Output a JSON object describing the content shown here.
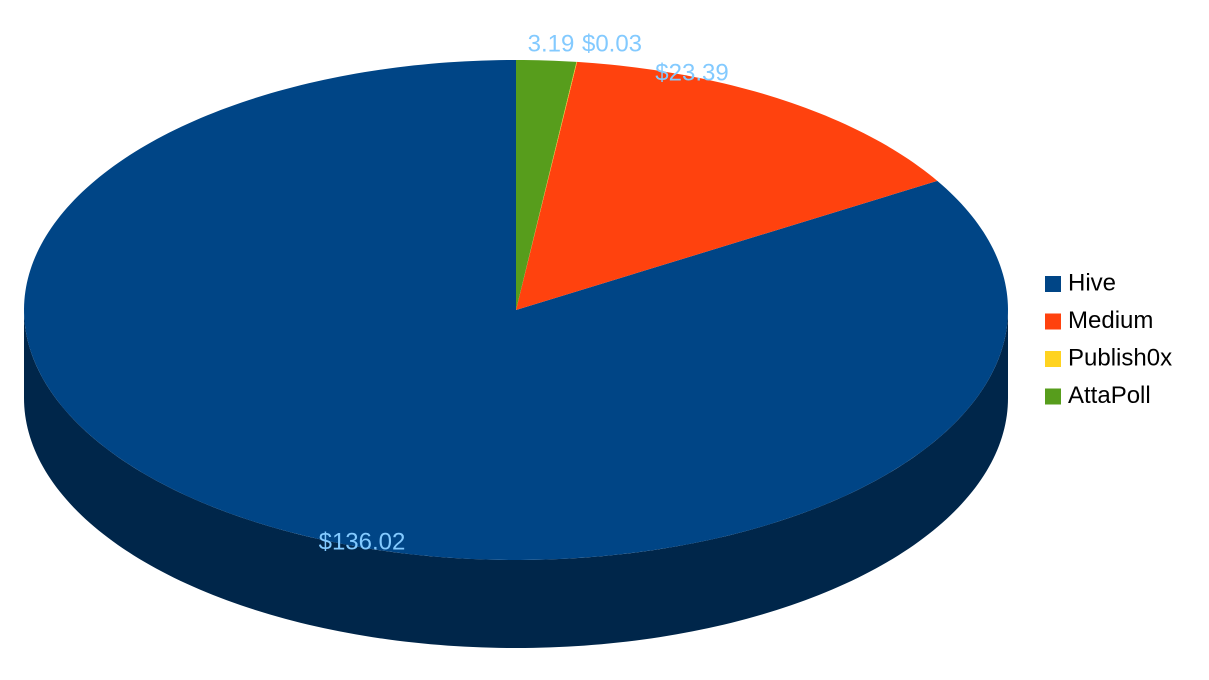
{
  "chart_data": {
    "type": "pie",
    "categories": [
      "Hive",
      "Medium",
      "Publish0x",
      "AttaPoll"
    ],
    "values": [
      136.02,
      23.39,
      0.03,
      3.19
    ],
    "value_labels": [
      "$136.02",
      "$23.39",
      "$0.03",
      "3.19"
    ],
    "colors": [
      "#004586",
      "#ff420e",
      "#ffd320",
      "#579d1c"
    ],
    "legend": "right"
  }
}
